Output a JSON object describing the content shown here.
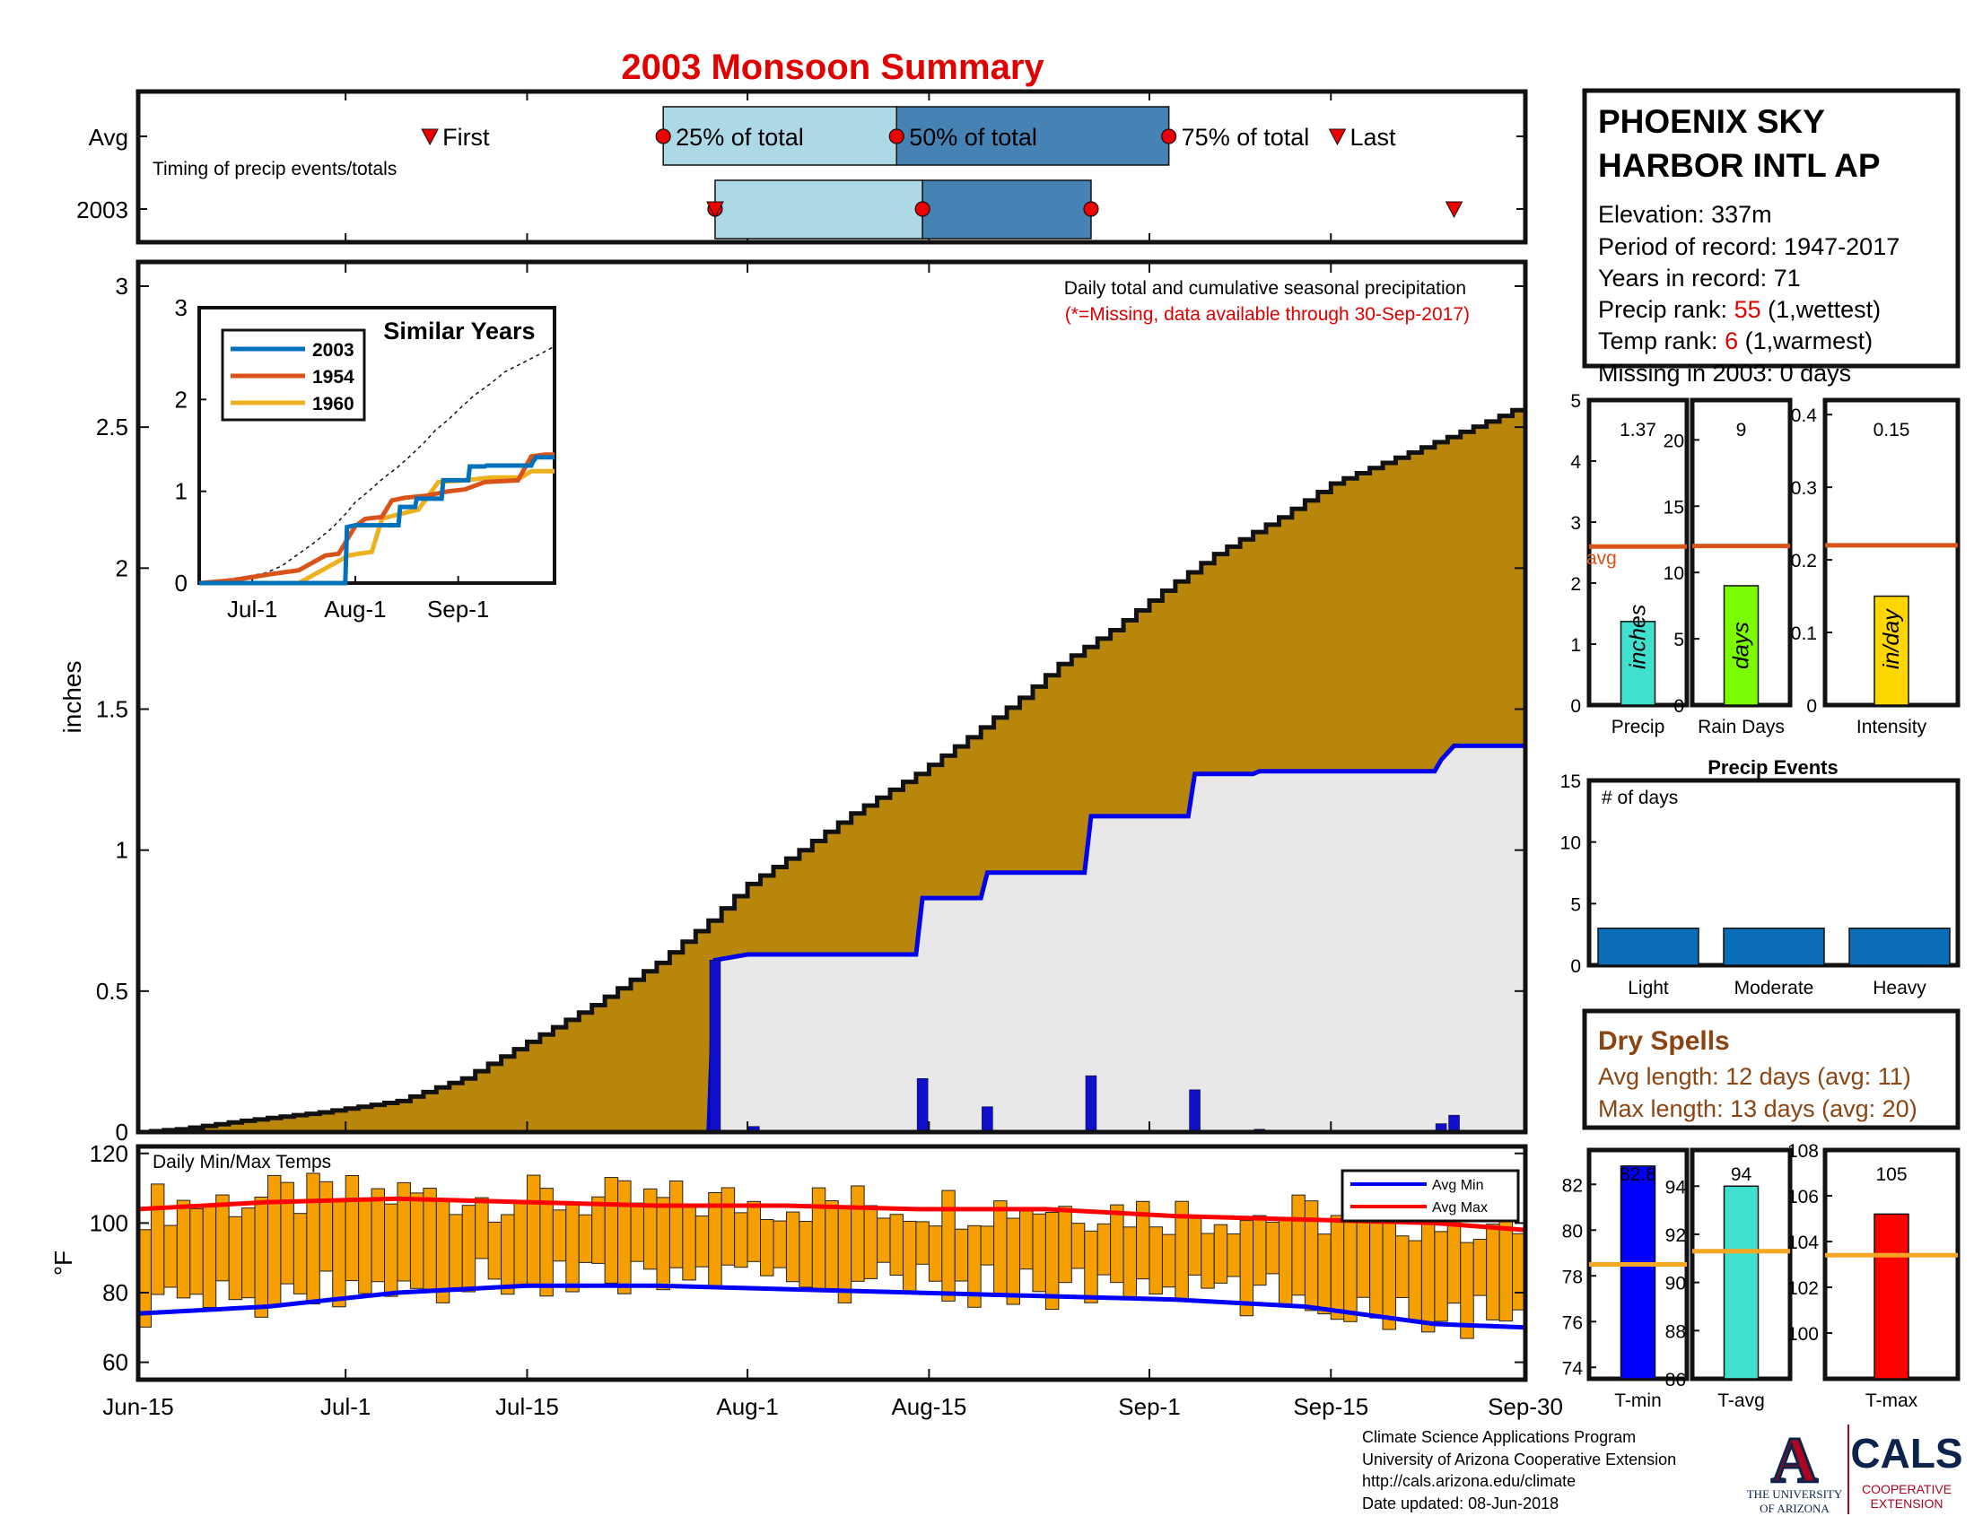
{
  "title": "2003 Monsoon Summary",
  "colors": {
    "cum_2003": "#b8860b",
    "cum_avg_fill": "#e9e8e8",
    "avg_line": "#0000ee",
    "daily_bar": "#1010cc",
    "light_blue": "#add8e6",
    "steel_blue": "#4682b4",
    "marker_red": "#ee0000",
    "title_red": "#e00000",
    "temp_bar": "#f5a000",
    "avg_min_line": "#0000ff",
    "avg_max_line": "#ff0000",
    "avg_hline": "#d9541a",
    "avg_temp_hline": "#f5a623",
    "dry_brown": "#8b4513",
    "s2003": "#0072bd",
    "s1954": "#d95319",
    "s1960": "#edb120",
    "ua_red": "#ab0520",
    "ua_blue": "#0c234b"
  },
  "timing": {
    "avg_label": "Avg",
    "year_label": "2003",
    "note": "Timing of precip events/totals",
    "first_label": "First",
    "p25_label": "25% of total",
    "p50_label": "50% of total",
    "p75_label": "75% of total",
    "last_label": "Last",
    "axis_days": [
      0,
      107
    ],
    "avg": {
      "first": 22.5,
      "p25": 40.5,
      "p50": 58.5,
      "p75": 79.5,
      "last": 92.5
    },
    "y2003": {
      "first": 44.5,
      "p25": 44.5,
      "p50": 60.5,
      "p75": 73.5,
      "last": 101.5
    }
  },
  "station": {
    "name_line1": "PHOENIX SKY",
    "name_line2": "HARBOR INTL AP",
    "elevation": "Elevation: 337m",
    "period": "Period of record: 1947-2017",
    "years": "Years in record: 71",
    "precip_rank_label": "Precip rank: ",
    "precip_rank": "55",
    "precip_rank_note": " (1,wettest)",
    "temp_rank_label": "Temp rank: ",
    "temp_rank": "6",
    "temp_rank_note": " (1,warmest)",
    "missing": "Missing in 2003: 0 days"
  },
  "main_chart": {
    "note": "Daily total and cumulative seasonal precipitation",
    "missing_note": "(*=Missing, data available through 30-Sep-2017)",
    "ylabel": "inches",
    "ylim": [
      0,
      3
    ],
    "yticks": [
      "0",
      "0.5",
      "1",
      "1.5",
      "2",
      "2.5",
      "3"
    ],
    "date_ticks": [
      {
        "label": "Jun-15",
        "day": 0
      },
      {
        "label": "Jul-1",
        "day": 16
      },
      {
        "label": "Jul-15",
        "day": 30
      },
      {
        "label": "Aug-1",
        "day": 47
      },
      {
        "label": "Aug-15",
        "day": 61
      },
      {
        "label": "Sep-1",
        "day": 78
      },
      {
        "label": "Sep-15",
        "day": 92
      },
      {
        "label": "Sep-30",
        "day": 107
      }
    ]
  },
  "chart_data": [
    {
      "type": "area",
      "title": "Daily total and cumulative seasonal precipitation",
      "ylabel": "inches",
      "ylim": [
        0,
        3
      ],
      "xlim": [
        "Jun-15",
        "Sep-30"
      ],
      "series": [
        {
          "name": "Average cumulative precipitation",
          "x_day": [
            0,
            3,
            8,
            14,
            20,
            25,
            30,
            35,
            40,
            44,
            47,
            51,
            55,
            60,
            64,
            68,
            71,
            75,
            79,
            83,
            88,
            92,
            98,
            104,
            107
          ],
          "values": [
            0.0,
            0.01,
            0.04,
            0.07,
            0.11,
            0.19,
            0.32,
            0.45,
            0.6,
            0.75,
            0.88,
            1.0,
            1.13,
            1.27,
            1.4,
            1.54,
            1.66,
            1.78,
            1.92,
            2.05,
            2.18,
            2.3,
            2.41,
            2.52,
            2.58
          ]
        },
        {
          "name": "2003 cumulative precipitation",
          "x_day": [
            0,
            44,
            44.5,
            47,
            60,
            60.5,
            65,
            65.5,
            73,
            73.5,
            81,
            81.5,
            86,
            86.5,
            100,
            100.5,
            101.5,
            107
          ],
          "values": [
            0.0,
            0.0,
            0.61,
            0.63,
            0.63,
            0.83,
            0.83,
            0.92,
            0.92,
            1.12,
            1.12,
            1.27,
            1.27,
            1.28,
            1.28,
            1.32,
            1.37,
            1.37
          ]
        },
        {
          "name": "2003 daily precipitation",
          "x_day": [
            44.5,
            47.5,
            60.5,
            65.5,
            73.5,
            81.5,
            86.5,
            100.5,
            101.5
          ],
          "values": [
            0.61,
            0.02,
            0.19,
            0.09,
            0.2,
            0.15,
            0.01,
            0.03,
            0.06
          ]
        }
      ]
    },
    {
      "type": "line",
      "title": "Similar Years",
      "x_ticks": [
        "Jul-1",
        "Aug-1",
        "Sep-1"
      ],
      "ylim": [
        0,
        3
      ],
      "series": [
        {
          "name": "2003",
          "x_day": [
            0,
            44,
            44.5,
            47,
            60,
            60.5,
            65,
            65.5,
            73,
            73.5,
            81,
            81.5,
            86,
            86.5,
            100,
            100.5,
            101.5,
            107
          ],
          "values": [
            0.0,
            0.0,
            0.61,
            0.63,
            0.63,
            0.83,
            0.83,
            0.92,
            0.92,
            1.12,
            1.12,
            1.27,
            1.27,
            1.28,
            1.28,
            1.32,
            1.37,
            1.37
          ]
        },
        {
          "name": "1954",
          "x_day": [
            0,
            10,
            15,
            22,
            30,
            38,
            42,
            47,
            50,
            55,
            58,
            62,
            68,
            75,
            80,
            86,
            96,
            100,
            104,
            107
          ],
          "values": [
            0.0,
            0.03,
            0.06,
            0.1,
            0.14,
            0.3,
            0.32,
            0.62,
            0.7,
            0.72,
            0.9,
            0.93,
            0.95,
            1.0,
            1.02,
            1.1,
            1.12,
            1.38,
            1.4,
            1.4
          ]
        },
        {
          "name": "1960",
          "x_day": [
            0,
            30,
            45,
            48,
            52,
            55,
            60,
            66,
            72,
            80,
            88,
            97,
            100,
            107
          ],
          "values": [
            0.0,
            0.0,
            0.3,
            0.32,
            0.34,
            0.7,
            0.75,
            0.8,
            1.1,
            1.12,
            1.15,
            1.15,
            1.22,
            1.22
          ]
        },
        {
          "name": "Average",
          "x_day": [
            0,
            8,
            14,
            20,
            25,
            30,
            35,
            40,
            44,
            47,
            51,
            55,
            60,
            64,
            68,
            71,
            75,
            79,
            83,
            88,
            92,
            98,
            104,
            107
          ],
          "values": [
            0.0,
            0.04,
            0.07,
            0.11,
            0.19,
            0.32,
            0.45,
            0.6,
            0.75,
            0.88,
            1.0,
            1.13,
            1.27,
            1.4,
            1.54,
            1.66,
            1.78,
            1.92,
            2.05,
            2.18,
            2.3,
            2.41,
            2.52,
            2.58
          ]
        }
      ]
    },
    {
      "type": "bar",
      "title": "Daily Min/Max Temps",
      "ylabel": "°F",
      "ylim": [
        50,
        120
      ],
      "series": [
        {
          "name": "Avg Min",
          "x_day": [
            0,
            10,
            20,
            30,
            40,
            50,
            60,
            70,
            80,
            90,
            100,
            107
          ],
          "values": [
            74,
            76,
            80,
            82,
            82,
            81,
            80,
            79,
            78,
            76,
            71,
            70
          ]
        },
        {
          "name": "Avg Max",
          "x_day": [
            0,
            10,
            20,
            30,
            40,
            50,
            60,
            70,
            80,
            90,
            100,
            107
          ],
          "values": [
            104,
            106,
            107,
            106,
            105,
            105,
            104,
            104,
            102,
            101,
            100,
            98
          ]
        }
      ]
    },
    {
      "type": "bar",
      "categories": [
        "Precip",
        "Rain Days",
        "Intensity"
      ],
      "series": [
        {
          "name": "2003",
          "values": [
            1.37,
            9,
            0.15
          ]
        },
        {
          "name": "avg",
          "values": [
            2.6,
            12,
            0.22
          ]
        }
      ]
    },
    {
      "type": "bar",
      "title": "Precip Events",
      "categories": [
        "Light",
        "Moderate",
        "Heavy"
      ],
      "values": [
        3,
        3,
        3
      ],
      "ylim": [
        0,
        15
      ]
    },
    {
      "type": "bar",
      "categories": [
        "T-min",
        "T-avg",
        "T-max"
      ],
      "series": [
        {
          "name": "2003",
          "values": [
            82.8,
            94,
            105
          ]
        },
        {
          "name": "avg",
          "values": [
            78.5,
            91.3,
            103.4
          ]
        }
      ]
    }
  ],
  "temps": {
    "label": "Daily Min/Max Temps",
    "ylabel": "°F",
    "ylim": [
      55,
      122
    ],
    "yticks": [
      60,
      80,
      100,
      120
    ],
    "legend_min": "Avg Min",
    "legend_max": "Avg Max"
  },
  "inset": {
    "title": "Similar Years",
    "ylim": [
      0,
      3
    ],
    "yticks": [
      "0",
      "1",
      "2",
      "3"
    ],
    "xticks": [
      {
        "label": "Jul-1",
        "day": 16
      },
      {
        "label": "Aug-1",
        "day": 47
      },
      {
        "label": "Sep-1",
        "day": 78
      }
    ]
  },
  "summary_bars": [
    {
      "label": "Precip",
      "value_text": "1.37",
      "value": 1.37,
      "avg": 2.6,
      "ylim": [
        0,
        5
      ],
      "yticks": [
        "0",
        "1",
        "2",
        "3",
        "4",
        "5"
      ],
      "unit": "inches",
      "color": "#40e0d0",
      "avg_label": "avg"
    },
    {
      "label": "Rain Days",
      "value_text": "9",
      "value": 9,
      "avg": 12,
      "ylim": [
        0,
        23
      ],
      "yticks": [
        "0",
        "5",
        "10",
        "15",
        "20"
      ],
      "tick_vals": [
        0,
        5,
        10,
        15,
        20
      ],
      "unit": "days",
      "color": "#7cfc00",
      "avg_label": ""
    },
    {
      "label": "Intensity",
      "value_text": "0.15",
      "value": 0.15,
      "avg": 0.22,
      "ylim": [
        0,
        0.42
      ],
      "yticks": [
        "0",
        "0.1",
        "0.2",
        "0.3",
        "0.4"
      ],
      "tick_vals": [
        0,
        0.1,
        0.2,
        0.3,
        0.4
      ],
      "unit": "in/day",
      "color": "#ffd700",
      "avg_label": ""
    }
  ],
  "precip_events": {
    "title": "Precip Events",
    "ylabel": "# of days",
    "ylim": [
      0,
      15
    ],
    "yticks": [
      "0",
      "5",
      "10",
      "15"
    ],
    "categories": [
      "Light",
      "Moderate",
      "Heavy"
    ],
    "values": [
      3,
      3,
      3
    ]
  },
  "dry_spells": {
    "title": "Dry Spells",
    "avg_length": "Avg length: 12 days (avg: 11)",
    "max_length": "Max length: 13 days (avg: 20)"
  },
  "temp_bars": [
    {
      "label": "T-min",
      "value_text": "82.8",
      "value": 82.8,
      "avg": 78.5,
      "ylim": [
        73.5,
        83.5
      ],
      "tick_vals": [
        74,
        76,
        78,
        80,
        82
      ],
      "color": "#0000ff"
    },
    {
      "label": "T-avg",
      "value_text": "94",
      "value": 94,
      "avg": 91.3,
      "ylim": [
        86,
        95.5
      ],
      "tick_vals": [
        86,
        88,
        90,
        92,
        94
      ],
      "yticks_text": [
        "86",
        "88",
        "90",
        "92",
        "94"
      ],
      "color": "#40e0d0"
    },
    {
      "label": "T-max",
      "value_text": "105",
      "value": 105.2,
      "avg": 103.4,
      "ylim": [
        98,
        108
      ],
      "tick_vals": [
        100,
        102,
        104,
        106,
        108
      ],
      "color": "#ff0000"
    }
  ],
  "footer": {
    "line1": "Climate Science Applications Program",
    "line2": "University of Arizona Cooperative Extension",
    "line3": "http://cals.arizona.edu/climate",
    "line4": " Date updated: 08-Jun-2018"
  },
  "logos": {
    "ua_letter": "A",
    "ua_line1": "THE UNIVERSITY",
    "ua_line2": "OF ARIZONA",
    "cals_text": "CALS",
    "cals_line1": "COOPERATIVE",
    "cals_line2": "EXTENSION"
  }
}
